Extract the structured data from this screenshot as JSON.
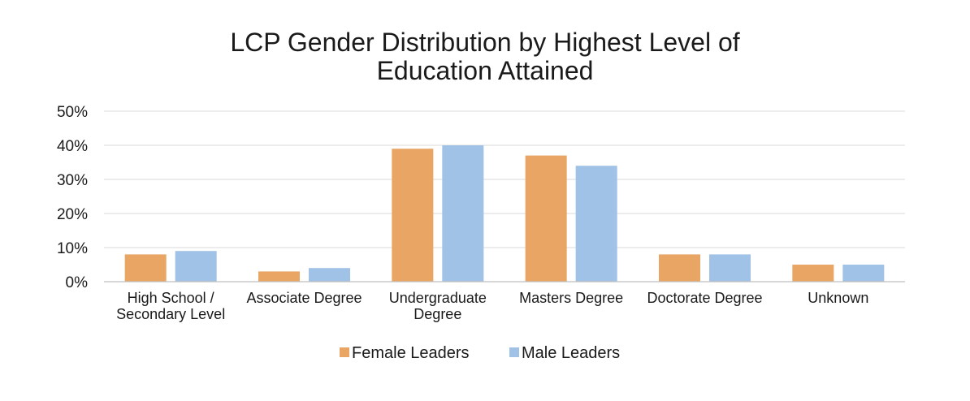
{
  "chart_data": {
    "type": "bar",
    "title_lines": [
      "LCP Gender Distribution by Highest Level of",
      "Education Attained"
    ],
    "categories": [
      [
        "High School /",
        "Secondary Level"
      ],
      [
        "Associate Degree"
      ],
      [
        "Undergraduate",
        "Degree"
      ],
      [
        "Masters Degree"
      ],
      [
        "Doctorate Degree"
      ],
      [
        "Unknown"
      ]
    ],
    "series": [
      {
        "name": "Female Leaders",
        "color": "#E8A563",
        "values": [
          8,
          3,
          39,
          37,
          8,
          5
        ]
      },
      {
        "name": "Male Leaders",
        "color": "#9FC2E6",
        "values": [
          9,
          4,
          40,
          34,
          8,
          5
        ]
      }
    ],
    "ylim": [
      0,
      50
    ],
    "yticks": [
      0,
      10,
      20,
      30,
      40,
      50
    ],
    "ytick_labels": [
      "0%",
      "10%",
      "20%",
      "30%",
      "40%",
      "50%"
    ],
    "grid": true,
    "legend_position": "bottom"
  }
}
